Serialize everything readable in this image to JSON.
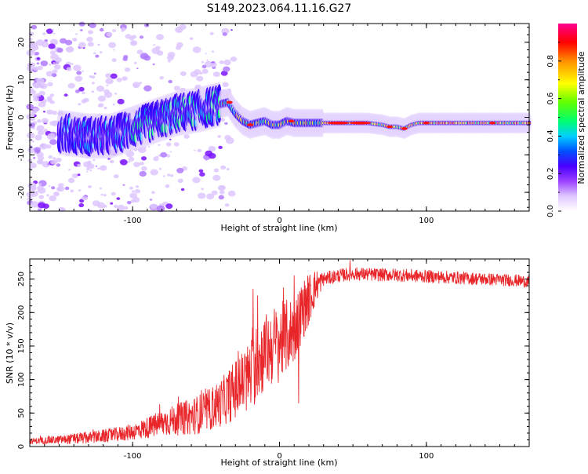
{
  "title": "S149.2023.064.11.16.G27",
  "chart_data": [
    {
      "type": "heatmap",
      "xlabel": "Height of straight line (km)",
      "ylabel": "Frequency (Hz)",
      "xlim": [
        -170,
        170
      ],
      "ylim": [
        -25,
        25
      ],
      "x_ticks": [
        -100,
        0,
        100
      ],
      "y_ticks": [
        -20,
        -10,
        0,
        10,
        20
      ],
      "colorbar": {
        "label": "Normalized spectral amplitude",
        "range": [
          0,
          1
        ],
        "ticks": [
          "0.0",
          "0.2",
          "0.4",
          "0.6",
          "0.8"
        ],
        "colors": [
          "#ffffff",
          "#d6b8ff",
          "#7a00ff",
          "#1a00ff",
          "#00c8ff",
          "#00ff60",
          "#ffff00",
          "#ff9000",
          "#ff0000",
          "#ff0090"
        ]
      },
      "ridge": {
        "x": [
          -170,
          -150,
          -130,
          -115,
          -100,
          -85,
          -70,
          -55,
          -45,
          -35,
          -30,
          -25,
          -20,
          -15,
          -10,
          -5,
          0,
          5,
          10,
          20,
          30,
          40,
          50,
          60,
          70,
          75,
          80,
          85,
          90,
          95,
          100,
          110,
          120,
          140,
          160,
          170
        ],
        "y": [
          -3,
          -4,
          -5,
          -5,
          -3,
          -1,
          1,
          2,
          3,
          4,
          1,
          -1,
          -2,
          -1.5,
          -1,
          -2,
          -2,
          -1,
          -1.5,
          -1.5,
          -1.5,
          -1.5,
          -1.5,
          -1.5,
          -2,
          -2.5,
          -2.5,
          -3,
          -2,
          -1.5,
          -1.5,
          -1.5,
          -1.5,
          -1.5,
          -1.5,
          -1.5
        ]
      }
    },
    {
      "type": "line",
      "xlabel": "Height of straight line (km)",
      "ylabel": "SNR (10 * v/v)",
      "xlim": [
        -170,
        170
      ],
      "ylim": [
        0,
        280
      ],
      "x_ticks": [
        -100,
        0,
        100
      ],
      "y_ticks": [
        0,
        50,
        100,
        150,
        200,
        250
      ],
      "color": "#e8262a",
      "trend": {
        "x": [
          -170,
          -150,
          -130,
          -110,
          -100,
          -90,
          -80,
          -70,
          -60,
          -50,
          -40,
          -30,
          -20,
          -15,
          -10,
          -5,
          0,
          5,
          10,
          15,
          20,
          25,
          30,
          40,
          50,
          60,
          80,
          100,
          120,
          140,
          160,
          170
        ],
        "y": [
          8,
          10,
          13,
          18,
          22,
          28,
          35,
          40,
          45,
          52,
          65,
          85,
          105,
          125,
          140,
          150,
          155,
          165,
          175,
          200,
          220,
          240,
          250,
          255,
          258,
          257,
          256,
          254,
          252,
          250,
          248,
          246
        ]
      },
      "noise": {
        "x": [
          -170,
          -100,
          -40,
          -20,
          0,
          20,
          30,
          170
        ],
        "amplitude": [
          4,
          12,
          35,
          55,
          60,
          40,
          10,
          9
        ]
      },
      "spikes": [
        {
          "x": -18,
          "y": 235
        },
        {
          "x": -15,
          "y": 225
        },
        {
          "x": 10,
          "y": 255
        },
        {
          "x": 13,
          "y": 65
        },
        {
          "x": 48,
          "y": 278
        }
      ]
    }
  ]
}
